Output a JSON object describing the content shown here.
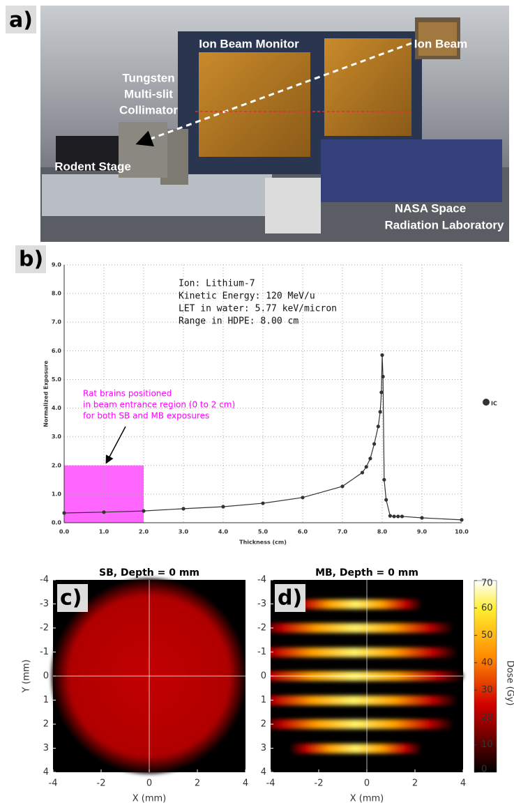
{
  "panel_labels": [
    "a)",
    "b)",
    "c)",
    "d)"
  ],
  "photo": {
    "labels": [
      "Ion Beam Monitor",
      "Ion Beam",
      "Tungsten",
      "Multi-slit",
      "Collimator",
      "Rodent Stage",
      "NASA Space",
      "Radiation Laboratory"
    ]
  },
  "chart_data": {
    "type": "line",
    "x": [
      0,
      1,
      2,
      3,
      4,
      5,
      6,
      7,
      7.5,
      7.6,
      7.7,
      7.8,
      7.9,
      7.95,
      7.98,
      8.0,
      8.02,
      8.05,
      8.1,
      8.2,
      8.3,
      8.4,
      8.5,
      9.0,
      10.0
    ],
    "series": [
      {
        "name": "IC",
        "color": "#333333",
        "values": [
          0.34,
          0.37,
          0.41,
          0.49,
          0.56,
          0.68,
          0.88,
          1.27,
          1.75,
          1.95,
          2.24,
          2.75,
          3.36,
          3.87,
          4.55,
          5.85,
          5.1,
          1.5,
          0.8,
          0.24,
          0.22,
          0.22,
          0.22,
          0.17,
          0.1
        ]
      }
    ],
    "xlabel": "Thickness (cm)",
    "ylabel": "Normalized Exposure",
    "xlim": [
      0,
      10
    ],
    "ylim": [
      0,
      9
    ],
    "xticks": [
      {
        "value": 0,
        "label": "0.0"
      },
      {
        "value": 1,
        "label": "1.0"
      },
      {
        "value": 2,
        "label": "2.0"
      },
      {
        "value": 3,
        "label": "3.0"
      },
      {
        "value": 4,
        "label": "4.0"
      },
      {
        "value": 5,
        "label": "5.0"
      },
      {
        "value": 6,
        "label": "6.0"
      },
      {
        "value": 7,
        "label": "7.0"
      },
      {
        "value": 8,
        "label": "8.0"
      },
      {
        "value": 9,
        "label": "9.0"
      },
      {
        "value": 10,
        "label": "10.0"
      }
    ],
    "yticks": [
      {
        "value": 0,
        "label": "0.0"
      },
      {
        "value": 1,
        "label": "1.0"
      },
      {
        "value": 2,
        "label": "2.0"
      },
      {
        "value": 3,
        "label": "3.0"
      },
      {
        "value": 4,
        "label": "4.0"
      },
      {
        "value": 5,
        "label": "5.0"
      },
      {
        "value": 6,
        "label": "6.0"
      },
      {
        "value": 7,
        "label": "7.0"
      },
      {
        "value": 8,
        "label": "8.0"
      },
      {
        "value": 9,
        "label": "9.0"
      }
    ],
    "grid": true,
    "legend": "right",
    "annotations": {
      "info": [
        "Ion: Lithium-7",
        "Kinetic Energy: 120 MeV/u",
        "LET in water: 5.77 keV/micron",
        "Range in HDPE: 8.00 cm"
      ],
      "note": [
        "Rat brains positioned",
        "in beam entrance region (0 to 2 cm)",
        "for both SB and MB exposures"
      ]
    },
    "highlight": {
      "x": [
        0,
        2
      ],
      "y": [
        0,
        2
      ],
      "color": "#ff66ff"
    }
  },
  "heatmaps": {
    "titles": [
      "SB, Depth = 0 mm",
      "MB, Depth = 0 mm"
    ],
    "xlabel": "X (mm)",
    "ylabel": "Y (mm)",
    "xlim": [
      -4,
      4
    ],
    "ylim": [
      -4,
      4
    ],
    "xticks": [
      -4,
      -2,
      0,
      2,
      4
    ],
    "yticks": [
      -4,
      -3,
      -2,
      -1,
      0,
      1,
      2,
      3,
      4
    ],
    "colorbar": {
      "label": "Dose (Gy)",
      "lim": [
        0,
        70
      ],
      "ticks": [
        0,
        10,
        20,
        30,
        40,
        50,
        60,
        70
      ]
    }
  }
}
